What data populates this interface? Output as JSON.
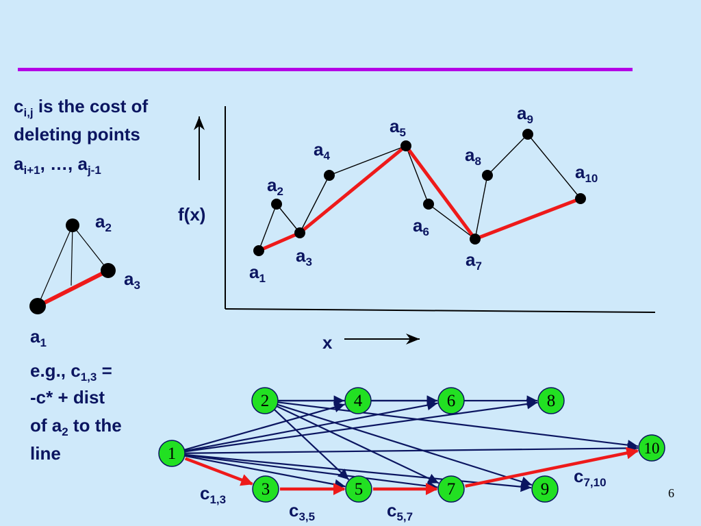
{
  "slide": {
    "page_number": "6",
    "rule_color": "#b400e6",
    "text_color": "#0b1560"
  },
  "description": {
    "c": "c",
    "c_sub": "i,j",
    "mid": " is the cost of",
    "line2": "deleting points",
    "a": "a",
    "a_sub1": "i+1",
    "mid2": ", …, a",
    "a_sub2": "j-1"
  },
  "example": {
    "line1_pre": "e.g., c",
    "line1_sub": "1,3",
    "line1_post": " =",
    "line2": "-c* + dist",
    "line3_pre": "of a",
    "line3_sub": "2",
    "line3_post": " to the",
    "line4": "line"
  },
  "triangle": {
    "labels": [
      {
        "base": "a",
        "sub": "2"
      },
      {
        "base": "a",
        "sub": "3"
      },
      {
        "base": "a",
        "sub": "1"
      }
    ]
  },
  "plot": {
    "ylabel": "f(x)",
    "xlabel": "x",
    "points": [
      {
        "base": "a",
        "sub": "1"
      },
      {
        "base": "a",
        "sub": "2"
      },
      {
        "base": "a",
        "sub": "3"
      },
      {
        "base": "a",
        "sub": "4"
      },
      {
        "base": "a",
        "sub": "5"
      },
      {
        "base": "a",
        "sub": "6"
      },
      {
        "base": "a",
        "sub": "7"
      },
      {
        "base": "a",
        "sub": "8"
      },
      {
        "base": "a",
        "sub": "9"
      },
      {
        "base": "a",
        "sub": "10"
      }
    ],
    "red_path": [
      1,
      3,
      5,
      7,
      10
    ]
  },
  "graph": {
    "nodes": [
      "1",
      "2",
      "3",
      "4",
      "5",
      "6",
      "7",
      "8",
      "9",
      "10"
    ],
    "node_fill": "#22e022",
    "edges": [
      [
        1,
        4
      ],
      [
        1,
        6
      ],
      [
        1,
        8
      ],
      [
        1,
        10
      ],
      [
        1,
        5
      ],
      [
        1,
        7
      ],
      [
        1,
        9
      ],
      [
        2,
        4
      ],
      [
        2,
        6
      ],
      [
        2,
        10
      ],
      [
        2,
        9
      ],
      [
        2,
        5
      ],
      [
        2,
        7
      ],
      [
        4,
        6
      ],
      [
        6,
        8
      ]
    ],
    "red_edges": [
      [
        1,
        3
      ],
      [
        3,
        5
      ],
      [
        5,
        7
      ],
      [
        7,
        10
      ]
    ],
    "edge_labels": [
      {
        "base": "c",
        "sub": "1,3"
      },
      {
        "base": "c",
        "sub": "3,5"
      },
      {
        "base": "c",
        "sub": "5,7"
      },
      {
        "base": "c",
        "sub": "7,10"
      }
    ]
  }
}
